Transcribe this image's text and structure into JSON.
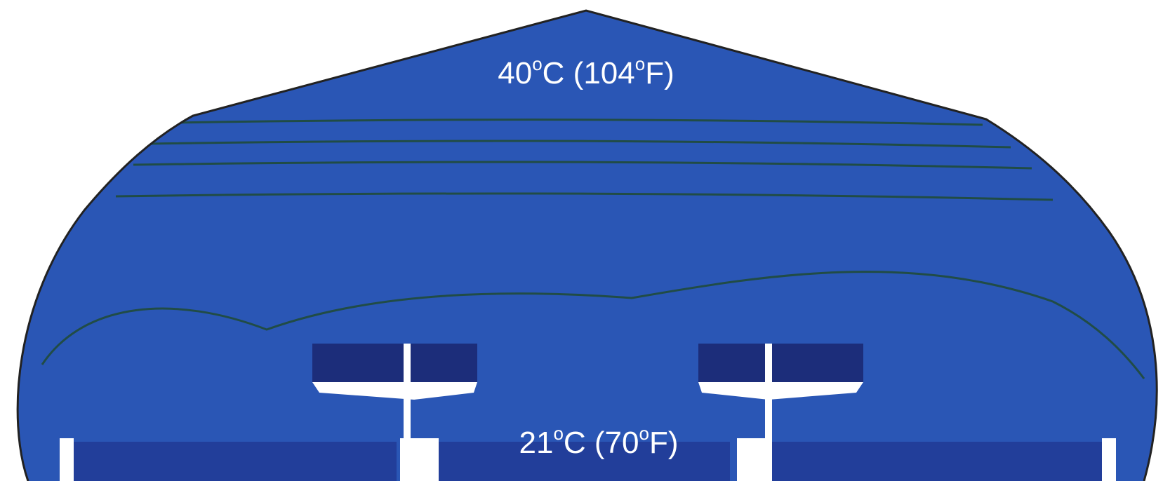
{
  "labels": [
    {
      "parts": [
        "40",
        "o",
        "C (104",
        "o",
        "F)"
      ]
    },
    {
      "parts": [
        "21",
        "o",
        "C (70",
        "o",
        "F)"
      ]
    }
  ]
}
